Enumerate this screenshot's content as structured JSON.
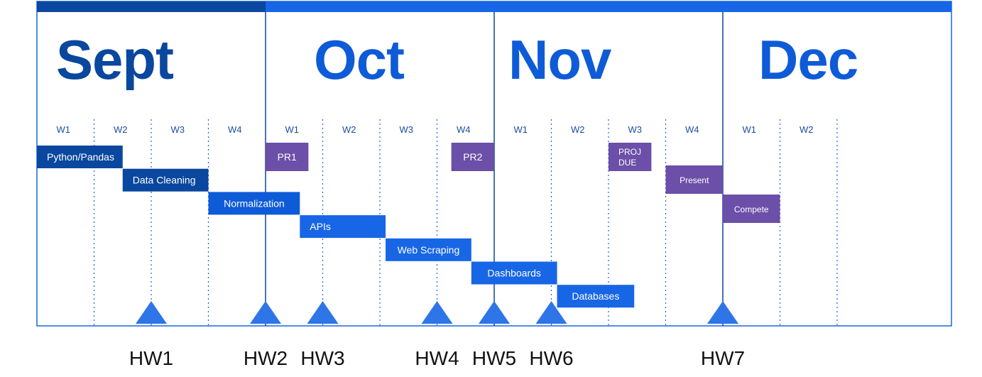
{
  "colors": {
    "dark_blue": "#0A479E",
    "blue": "#0E5BD8",
    "bright_blue": "#1766E6",
    "marker_blue": "#2E75E8",
    "purple": "#6B4FA8",
    "week_text": "#1A4E9E",
    "hw_text": "#111111"
  },
  "months": [
    {
      "name": "Sept",
      "weeks": [
        "W1",
        "W2",
        "W3",
        "W4"
      ]
    },
    {
      "name": "Oct",
      "weeks": [
        "W1",
        "W2",
        "W3",
        "W4"
      ]
    },
    {
      "name": "Nov",
      "weeks": [
        "W1",
        "W2",
        "W3",
        "W4"
      ]
    },
    {
      "name": "Dec",
      "weeks": [
        "W1",
        "W2"
      ]
    }
  ],
  "tasks": [
    {
      "label": "Python/Pandas",
      "start_week": 1,
      "end_week": 2.5
    },
    {
      "label": "Data Cleaning",
      "start_week": 2.5,
      "end_week": 4
    },
    {
      "label": "Normalization",
      "start_week": 4,
      "end_week": 5.6
    },
    {
      "label": "APIs",
      "start_week": 5.6,
      "end_week": 7.1
    },
    {
      "label": "Web Scraping",
      "start_week": 7.1,
      "end_week": 8.6
    },
    {
      "label": "Dashboards",
      "start_week": 8.6,
      "end_week": 10.1
    },
    {
      "label": "Databases",
      "start_week": 10.1,
      "end_week": 11.45
    }
  ],
  "milestones": [
    {
      "label": "PR1",
      "start_week": 5,
      "end_week": 5.75
    },
    {
      "label": "PR2",
      "start_week": 8.25,
      "end_week": 9
    },
    {
      "label": "PROJ DUE",
      "start_week": 11,
      "end_week": 11.75
    },
    {
      "label": "Present",
      "start_week": 12,
      "end_week": 13
    },
    {
      "label": "Compete",
      "start_week": 13,
      "end_week": 14
    }
  ],
  "homework": [
    {
      "label": "HW1",
      "week": 3
    },
    {
      "label": "HW2",
      "week": 5
    },
    {
      "label": "HW3",
      "week": 6
    },
    {
      "label": "HW4",
      "week": 8
    },
    {
      "label": "HW5",
      "week": 9
    },
    {
      "label": "HW6",
      "week": 10
    },
    {
      "label": "HW7",
      "week": 13
    }
  ]
}
